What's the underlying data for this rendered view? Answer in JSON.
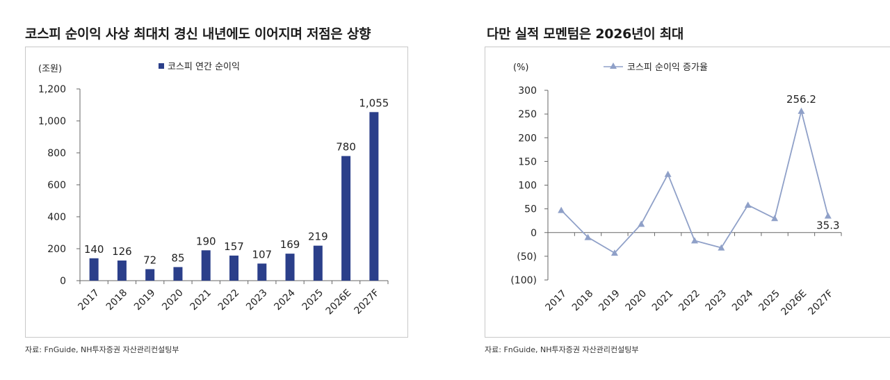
{
  "charts": {
    "left": {
      "title": "코스피 순이익 사상 최대치 경신 내년에도 이어지며 저점은 상향",
      "source": "자료: FnGuide, NH투자증권 자산관리컨설팅부"
    },
    "right": {
      "title": "다만 실적 모멘텀은 2026년이 최대",
      "source": "자료: FnGuide, NH투자증권 자산관리컨설팅부"
    }
  },
  "colors": {
    "bar": "#2b3f8a",
    "line": "#8fa0c8",
    "axis": "#666666"
  },
  "chart_data": [
    {
      "type": "bar",
      "title": "코스피 순이익 사상 최대치 경신 내년에도 이어지며 저점은 상향",
      "unit_label": "(조원)",
      "categories": [
        "2017",
        "2018",
        "2019",
        "2020",
        "2021",
        "2022",
        "2023",
        "2024",
        "2025",
        "2026E",
        "2027F"
      ],
      "series": [
        {
          "name": "코스피 연간 순이익",
          "values": [
            140,
            126,
            72,
            85,
            190,
            157,
            107,
            169,
            219,
            780,
            1055
          ],
          "labels": [
            "140",
            "126",
            "72",
            "85",
            "190",
            "157",
            "107",
            "169",
            "219",
            "780",
            "1,055"
          ]
        }
      ],
      "ylim": [
        0,
        1200
      ],
      "yticks": [
        0,
        200,
        400,
        600,
        800,
        1000,
        1200
      ],
      "ytick_labels": [
        "0",
        "200",
        "400",
        "600",
        "800",
        "1,000",
        "1,200"
      ],
      "legend": "top"
    },
    {
      "type": "line",
      "title": "다만 실적 모멘텀은 2026년이 최대",
      "unit_label": "(%)",
      "categories": [
        "2017",
        "2018",
        "2019",
        "2020",
        "2021",
        "2022",
        "2023",
        "2024",
        "2025",
        "2026E",
        "2027F"
      ],
      "series": [
        {
          "name": "코스피 순이익 증가율",
          "values": [
            47,
            -10,
            -43,
            18,
            123,
            -17,
            -32,
            58,
            30,
            256.2,
            35.3
          ],
          "annotations": [
            {
              "index": 9,
              "label": "256.2"
            },
            {
              "index": 10,
              "label": "35.3"
            }
          ]
        }
      ],
      "ylim": [
        -100,
        300
      ],
      "yticks": [
        -100,
        -50,
        0,
        50,
        100,
        150,
        200,
        250,
        300
      ],
      "ytick_labels": [
        "(100)",
        "(50)",
        "0",
        "50",
        "100",
        "150",
        "200",
        "250",
        "300"
      ],
      "legend": "top"
    }
  ]
}
